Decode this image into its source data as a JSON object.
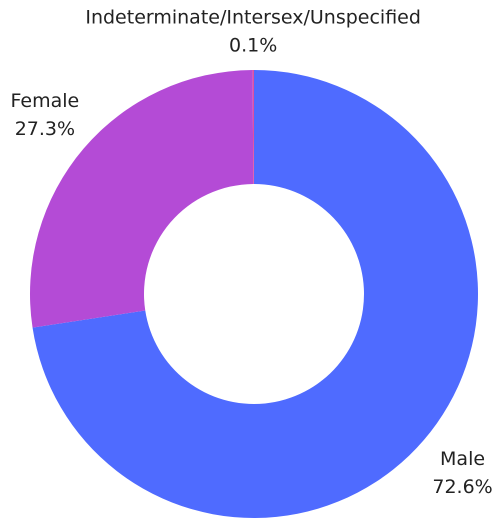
{
  "chart_data": {
    "type": "donut",
    "categories": [
      "Male",
      "Female",
      "Indeterminate/Intersex/Unspecified"
    ],
    "values": [
      72.6,
      27.3,
      0.1
    ],
    "value_labels": [
      "72.6%",
      "27.3%",
      "0.1%"
    ],
    "colors": [
      "#4f6bff",
      "#b44bd6",
      "#e0509f"
    ]
  }
}
